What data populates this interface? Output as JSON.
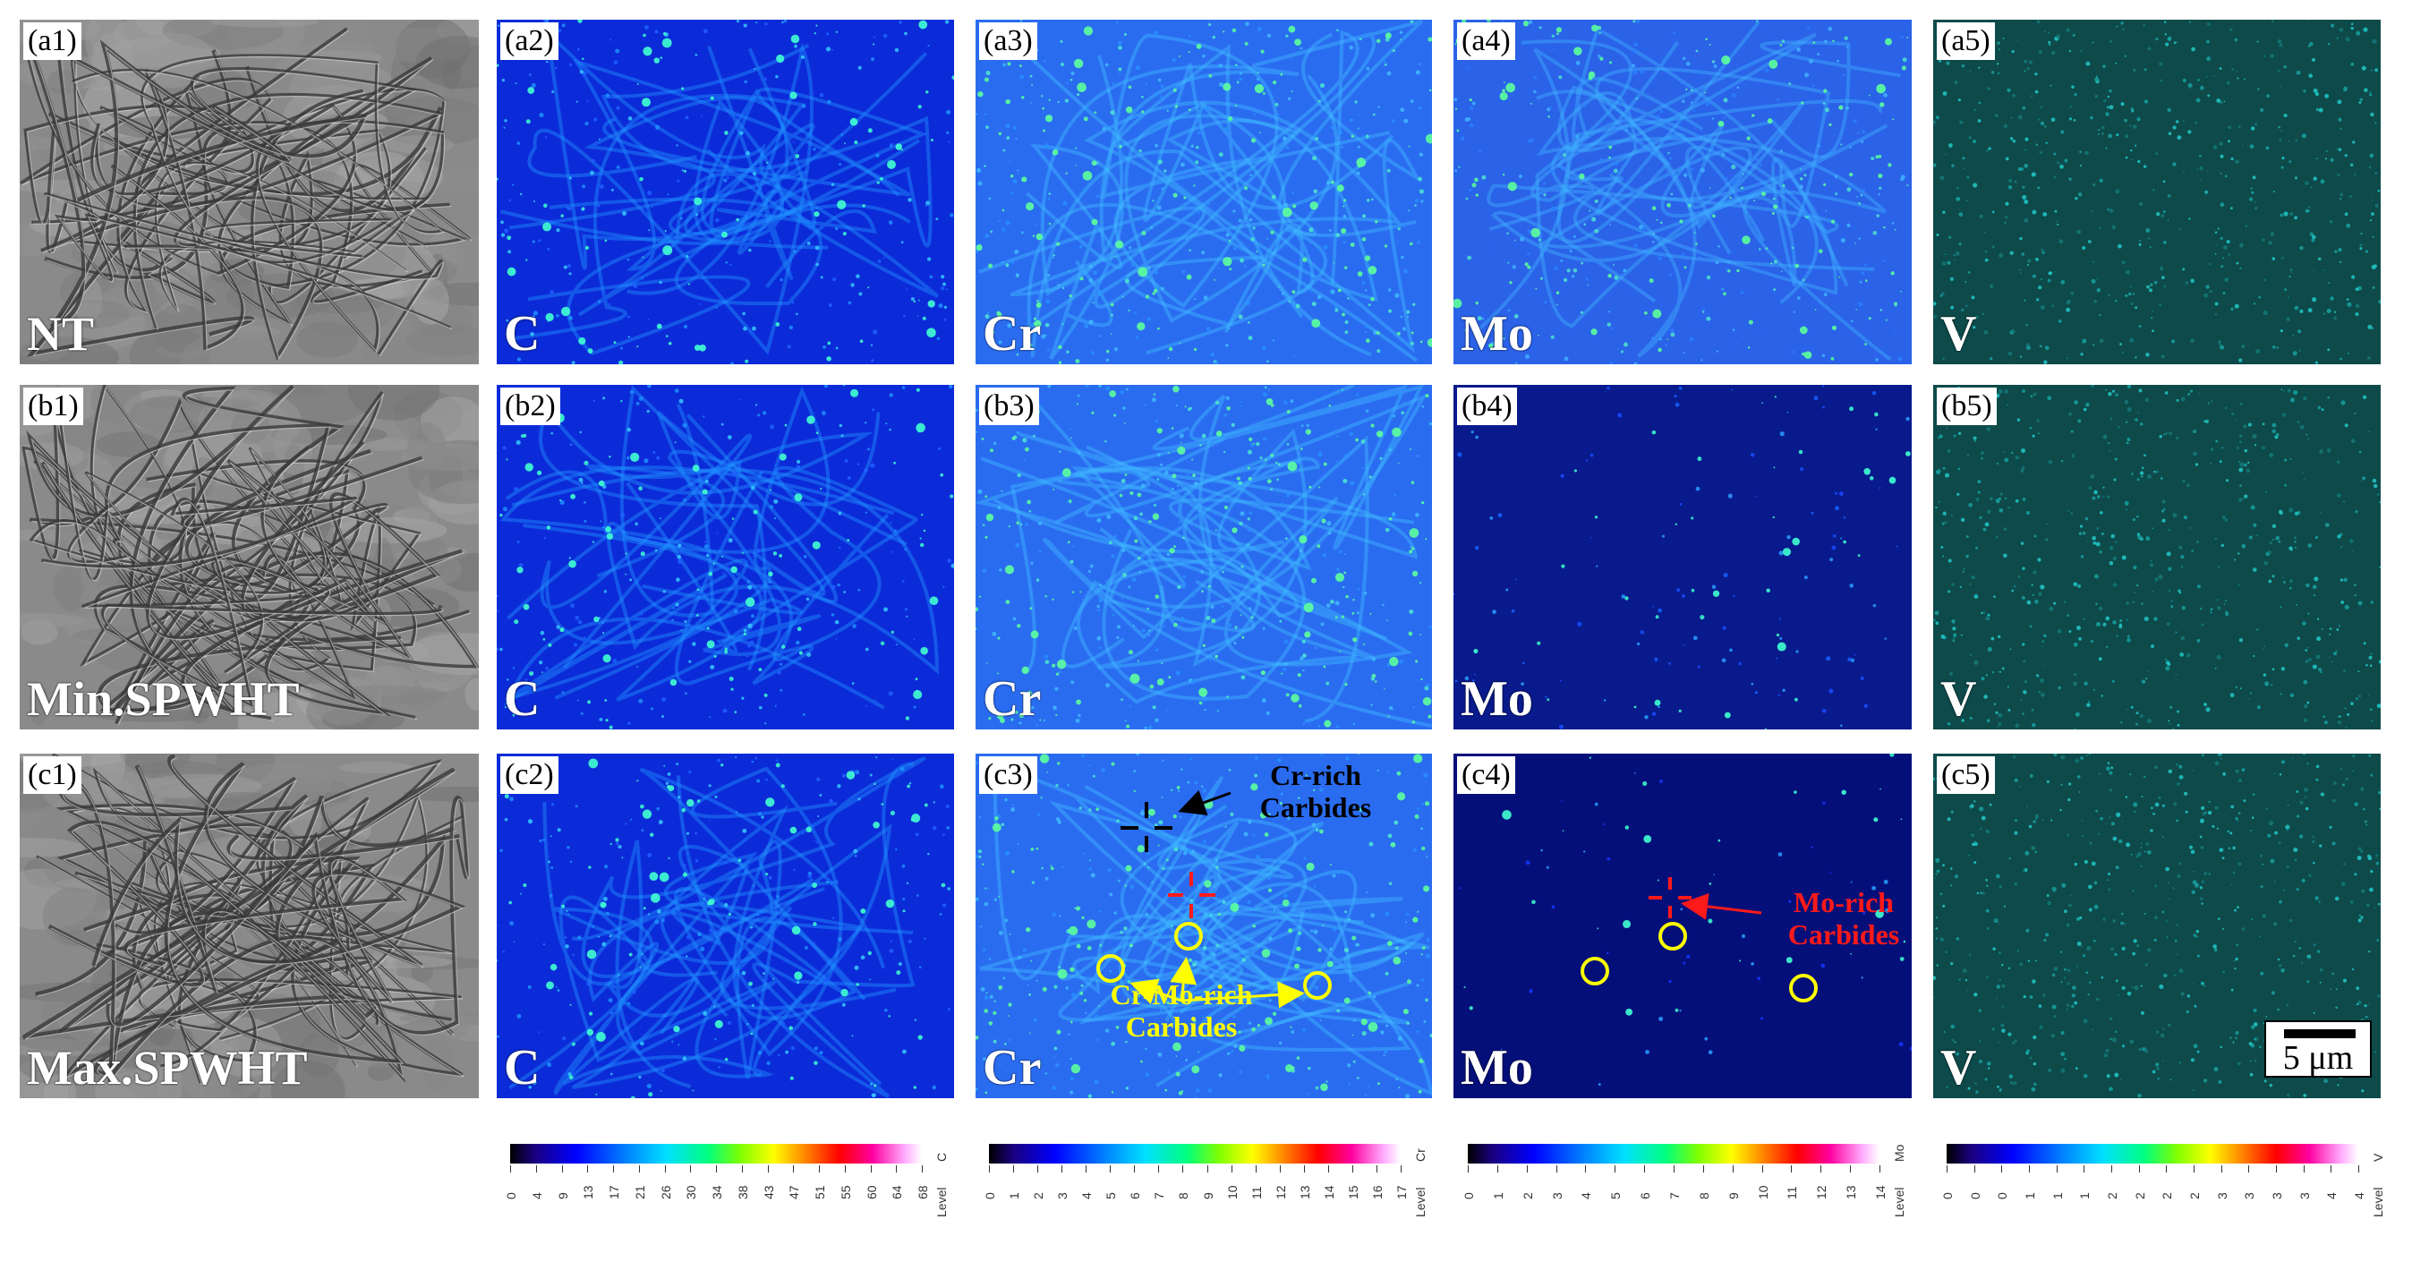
{
  "rows": [
    {
      "id": "a",
      "panels": [
        {
          "tag": "(a1)",
          "label": "NT",
          "kind": "sem"
        },
        {
          "tag": "(a2)",
          "label": "C",
          "kind": "C"
        },
        {
          "tag": "(a3)",
          "label": "Cr",
          "kind": "Cr"
        },
        {
          "tag": "(a4)",
          "label": "Mo",
          "kind": "Mo-a"
        },
        {
          "tag": "(a5)",
          "label": "V",
          "kind": "V"
        }
      ]
    },
    {
      "id": "b",
      "panels": [
        {
          "tag": "(b1)",
          "label": "Min.SPWHT",
          "kind": "sem"
        },
        {
          "tag": "(b2)",
          "label": "C",
          "kind": "C"
        },
        {
          "tag": "(b3)",
          "label": "Cr",
          "kind": "Cr"
        },
        {
          "tag": "(b4)",
          "label": "Mo",
          "kind": "Mo-b"
        },
        {
          "tag": "(b5)",
          "label": "V",
          "kind": "V"
        }
      ]
    },
    {
      "id": "c",
      "panels": [
        {
          "tag": "(c1)",
          "label": "Max.SPWHT",
          "kind": "sem"
        },
        {
          "tag": "(c2)",
          "label": "C",
          "kind": "C"
        },
        {
          "tag": "(c3)",
          "label": "Cr",
          "kind": "Cr"
        },
        {
          "tag": "(c4)",
          "label": "Mo",
          "kind": "Mo-c"
        },
        {
          "tag": "(c5)",
          "label": "V",
          "kind": "V"
        }
      ]
    }
  ],
  "annotations": {
    "cr_rich": {
      "line1": "Cr-rich",
      "line2": "Carbides",
      "color": "#000000"
    },
    "cr_mo_rich": {
      "line1": "Cr-Mo-rich",
      "line2": "Carbides",
      "color": "#ffff00"
    },
    "mo_rich": {
      "line1": "Mo-rich",
      "line2": "Carbides",
      "color": "#ff1a1a"
    }
  },
  "scale_bar": {
    "label": "5 μm"
  },
  "colorbars": [
    {
      "element": "C",
      "level_label": "Level",
      "ticks": [
        "0",
        "4",
        "9",
        "13",
        "17",
        "21",
        "26",
        "30",
        "34",
        "38",
        "43",
        "47",
        "51",
        "55",
        "60",
        "64",
        "68"
      ]
    },
    {
      "element": "Cr",
      "level_label": "Level",
      "ticks": [
        "0",
        "1",
        "2",
        "3",
        "4",
        "5",
        "6",
        "7",
        "8",
        "9",
        "10",
        "11",
        "12",
        "13",
        "14",
        "15",
        "16",
        "17"
      ]
    },
    {
      "element": "Mo",
      "level_label": "Level",
      "ticks": [
        "0",
        "1",
        "2",
        "3",
        "4",
        "5",
        "6",
        "7",
        "8",
        "9",
        "10",
        "11",
        "12",
        "13",
        "14"
      ]
    },
    {
      "element": "V",
      "level_label": "Level",
      "ticks": [
        "0",
        "0",
        "0",
        "1",
        "1",
        "1",
        "2",
        "2",
        "2",
        "2",
        "3",
        "3",
        "3",
        "3",
        "4",
        "4"
      ]
    }
  ]
}
